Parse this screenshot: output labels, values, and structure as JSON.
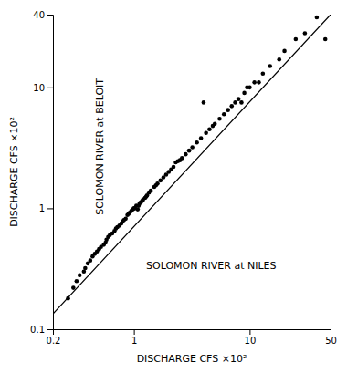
{
  "chart_data": {
    "type": "scatter",
    "xlabel": "DISCHARGE CFS ×10²",
    "ylabel": "DISCHARGE CFS ×10²",
    "annotations": [
      {
        "text": "SOLOMON RIVER at NILES"
      },
      {
        "text": "SOLOMON RIVER at BELOIT"
      }
    ],
    "log": true,
    "grid": false,
    "xlim": [
      0.2,
      50
    ],
    "ylim": [
      0.1,
      40
    ],
    "xticks": [
      0.2,
      1,
      10,
      50
    ],
    "yticks": [
      0.1,
      1,
      10,
      40
    ],
    "series": [
      {
        "type": "scatter",
        "color": "#000000",
        "x": [
          0.27,
          0.3,
          0.32,
          0.34,
          0.37,
          0.38,
          0.4,
          0.42,
          0.44,
          0.46,
          0.48,
          0.5,
          0.52,
          0.55,
          0.57,
          0.58,
          0.6,
          0.62,
          0.65,
          0.68,
          0.7,
          0.72,
          0.75,
          0.78,
          0.8,
          0.82,
          0.85,
          0.88,
          0.9,
          0.92,
          0.95,
          0.98,
          1.0,
          1.02,
          1.05,
          1.08,
          1.1,
          1.12,
          1.15,
          1.18,
          1.2,
          1.25,
          1.28,
          1.3,
          1.35,
          1.4,
          1.5,
          1.55,
          1.6,
          1.7,
          1.8,
          1.9,
          2.0,
          2.1,
          2.2,
          2.3,
          2.4,
          2.5,
          2.6,
          2.8,
          3.0,
          3.2,
          3.5,
          3.8,
          4.0,
          4.2,
          4.5,
          4.8,
          5.0,
          5.5,
          6.0,
          6.5,
          7.0,
          7.5,
          8.0,
          8.5,
          9.0,
          9.5,
          10.0,
          11.0,
          12.0,
          13.0,
          15.0,
          18.0,
          20.0,
          25.0,
          30.0,
          38.0,
          45.0
        ],
        "values": [
          0.18,
          0.22,
          0.25,
          0.28,
          0.3,
          0.32,
          0.35,
          0.37,
          0.4,
          0.42,
          0.44,
          0.46,
          0.48,
          0.5,
          0.52,
          0.55,
          0.58,
          0.6,
          0.62,
          0.65,
          0.68,
          0.7,
          0.72,
          0.75,
          0.78,
          0.8,
          0.82,
          0.88,
          0.9,
          0.92,
          0.95,
          0.98,
          1.0,
          1.0,
          1.05,
          0.98,
          1.05,
          1.1,
          1.12,
          1.15,
          1.18,
          1.22,
          1.25,
          1.28,
          1.35,
          1.4,
          1.5,
          1.55,
          1.6,
          1.7,
          1.8,
          1.9,
          2.0,
          2.1,
          2.2,
          2.4,
          2.45,
          2.5,
          2.6,
          2.8,
          3.0,
          3.2,
          3.5,
          3.8,
          7.5,
          4.2,
          4.5,
          4.8,
          5.0,
          5.5,
          6.0,
          6.5,
          7.0,
          7.5,
          8.0,
          7.5,
          9.0,
          10.0,
          10.0,
          11.0,
          11.0,
          13.0,
          15.0,
          17.0,
          20.0,
          25.0,
          28.0,
          38.0,
          25.0
        ]
      },
      {
        "type": "line",
        "color": "#000000",
        "x": [
          0.18,
          50
        ],
        "values": [
          0.12,
          40
        ]
      }
    ]
  }
}
